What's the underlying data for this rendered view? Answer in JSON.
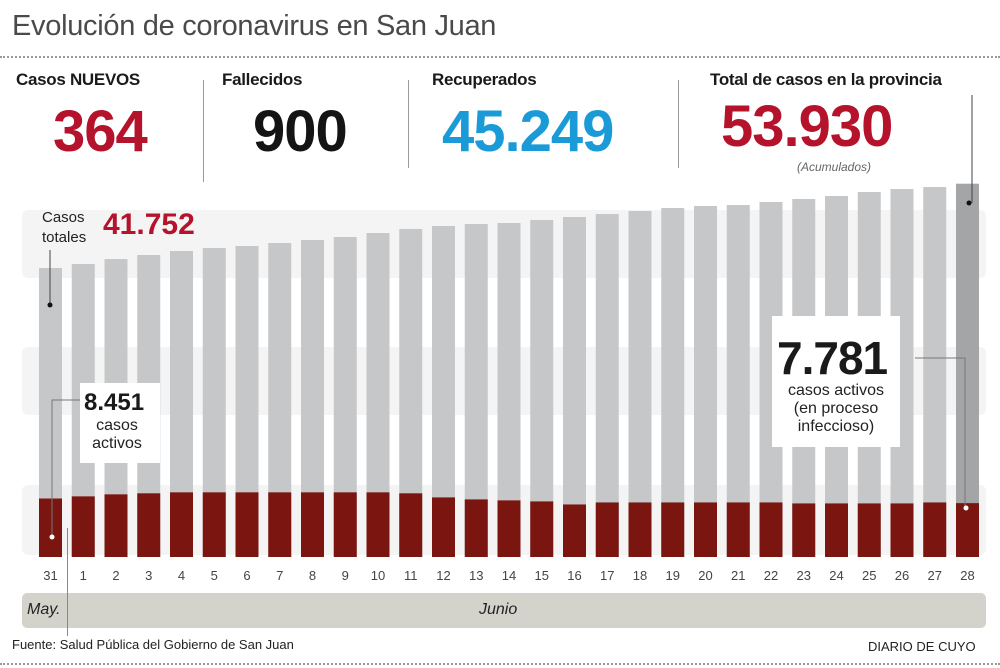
{
  "header": {
    "title": "Evolución de coronavirus en San Juan"
  },
  "stats": [
    {
      "label": "Casos NUEVOS",
      "value": "364",
      "color": "#b5122b"
    },
    {
      "label": "Fallecidos",
      "value": "900",
      "color": "#141414"
    },
    {
      "label": "Recuperados",
      "value": "45.249",
      "color": "#1a9bd7"
    },
    {
      "label": "Total de casos en la provincia",
      "value": "53.930",
      "note": "(Acumulados)",
      "color": "#b5122b"
    }
  ],
  "annotations": {
    "total_label": "Casos totales",
    "total_label_l1": "Casos",
    "total_label_l2": "totales",
    "total_start": "41.752",
    "active_start": "8.451",
    "active_start_l1": "casos",
    "active_start_l2": "activos",
    "active_end": "7.781",
    "active_end_l1": "casos activos",
    "active_end_l2": "(en proceso",
    "active_end_l3": "infeccioso)"
  },
  "months": {
    "may": "May.",
    "june": "Junio"
  },
  "footer": {
    "source": "Fuente: Salud Pública del Gobierno de San Juan",
    "brand": "DIARIO DE CUYO"
  },
  "chart_data": {
    "type": "bar",
    "categories": [
      "31",
      "1",
      "2",
      "3",
      "4",
      "5",
      "6",
      "7",
      "8",
      "9",
      "10",
      "11",
      "12",
      "13",
      "14",
      "15",
      "16",
      "17",
      "18",
      "19",
      "20",
      "21",
      "22",
      "23",
      "24",
      "25",
      "26",
      "27",
      "28"
    ],
    "series": [
      {
        "name": "Casos totales",
        "color": "#c6c7c9",
        "highlight_color": "#a4a5a7",
        "values": [
          41752,
          42330,
          43050,
          43630,
          44210,
          44640,
          44930,
          45360,
          45800,
          46230,
          46810,
          47390,
          47820,
          48110,
          48250,
          48690,
          49120,
          49550,
          49990,
          50420,
          50710,
          50850,
          51290,
          51720,
          52150,
          52730,
          53160,
          53450,
          53930
        ]
      },
      {
        "name": "casos activos",
        "color": "#7a1510",
        "values": [
          8451,
          8760,
          9050,
          9200,
          9340,
          9340,
          9340,
          9340,
          9340,
          9340,
          9340,
          9200,
          8610,
          8320,
          8180,
          8030,
          7590,
          7880,
          7880,
          7880,
          7880,
          7880,
          7880,
          7740,
          7740,
          7740,
          7740,
          7880,
          7781
        ]
      }
    ],
    "ylim": [
      0,
      55000
    ],
    "grid": false,
    "legend": "none"
  }
}
